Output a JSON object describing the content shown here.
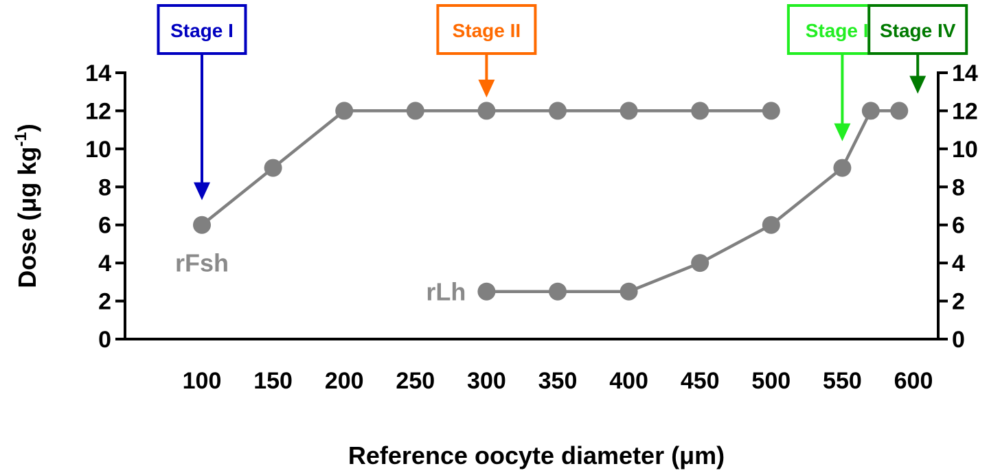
{
  "chart_data": {
    "type": "line",
    "title": "",
    "xlabel": "Reference oocyte diameter (μm)",
    "ylabel": {
      "main": "Dose (μg kg",
      "sup": "-1",
      "close": ")"
    },
    "xlim": [
      50,
      620
    ],
    "ylim": [
      0,
      14
    ],
    "x_ticks": [
      "100",
      "150",
      "200",
      "250",
      "300",
      "350",
      "400",
      "450",
      "500",
      "550",
      "600"
    ],
    "y_ticks": [
      "0",
      "2",
      "4",
      "6",
      "8",
      "10",
      "12",
      "14"
    ],
    "grid": false,
    "right_axis": true,
    "series": [
      {
        "name": "rFsh",
        "color": "#808080",
        "points": [
          {
            "x": 100,
            "y": 6
          },
          {
            "x": 150,
            "y": 9
          },
          {
            "x": 200,
            "y": 12
          },
          {
            "x": 250,
            "y": 12
          },
          {
            "x": 300,
            "y": 12
          },
          {
            "x": 350,
            "y": 12
          },
          {
            "x": 400,
            "y": 12
          },
          {
            "x": 450,
            "y": 12
          },
          {
            "x": 500,
            "y": 12
          }
        ]
      },
      {
        "name": "rLh",
        "color": "#808080",
        "points": [
          {
            "x": 300,
            "y": 2.5
          },
          {
            "x": 350,
            "y": 2.5
          },
          {
            "x": 400,
            "y": 2.5
          },
          {
            "x": 450,
            "y": 4
          },
          {
            "x": 500,
            "y": 6
          },
          {
            "x": 550,
            "y": 9
          },
          {
            "x": 570,
            "y": 12
          },
          {
            "x": 590,
            "y": 12
          }
        ]
      }
    ],
    "annotations": [
      {
        "label": "Stage I",
        "x": 100,
        "arrow_to_y": 7.3,
        "color": "#0000c0"
      },
      {
        "label": "Stage II",
        "x": 300,
        "arrow_to_y": 12.7,
        "color": "#ff6a00"
      },
      {
        "label": "Stage III",
        "x": 550,
        "arrow_to_y": 10.4,
        "color": "#22ee22"
      },
      {
        "label": "Stage IV",
        "x": 603,
        "arrow_to_y": 12.9,
        "color": "#007a00"
      }
    ]
  }
}
